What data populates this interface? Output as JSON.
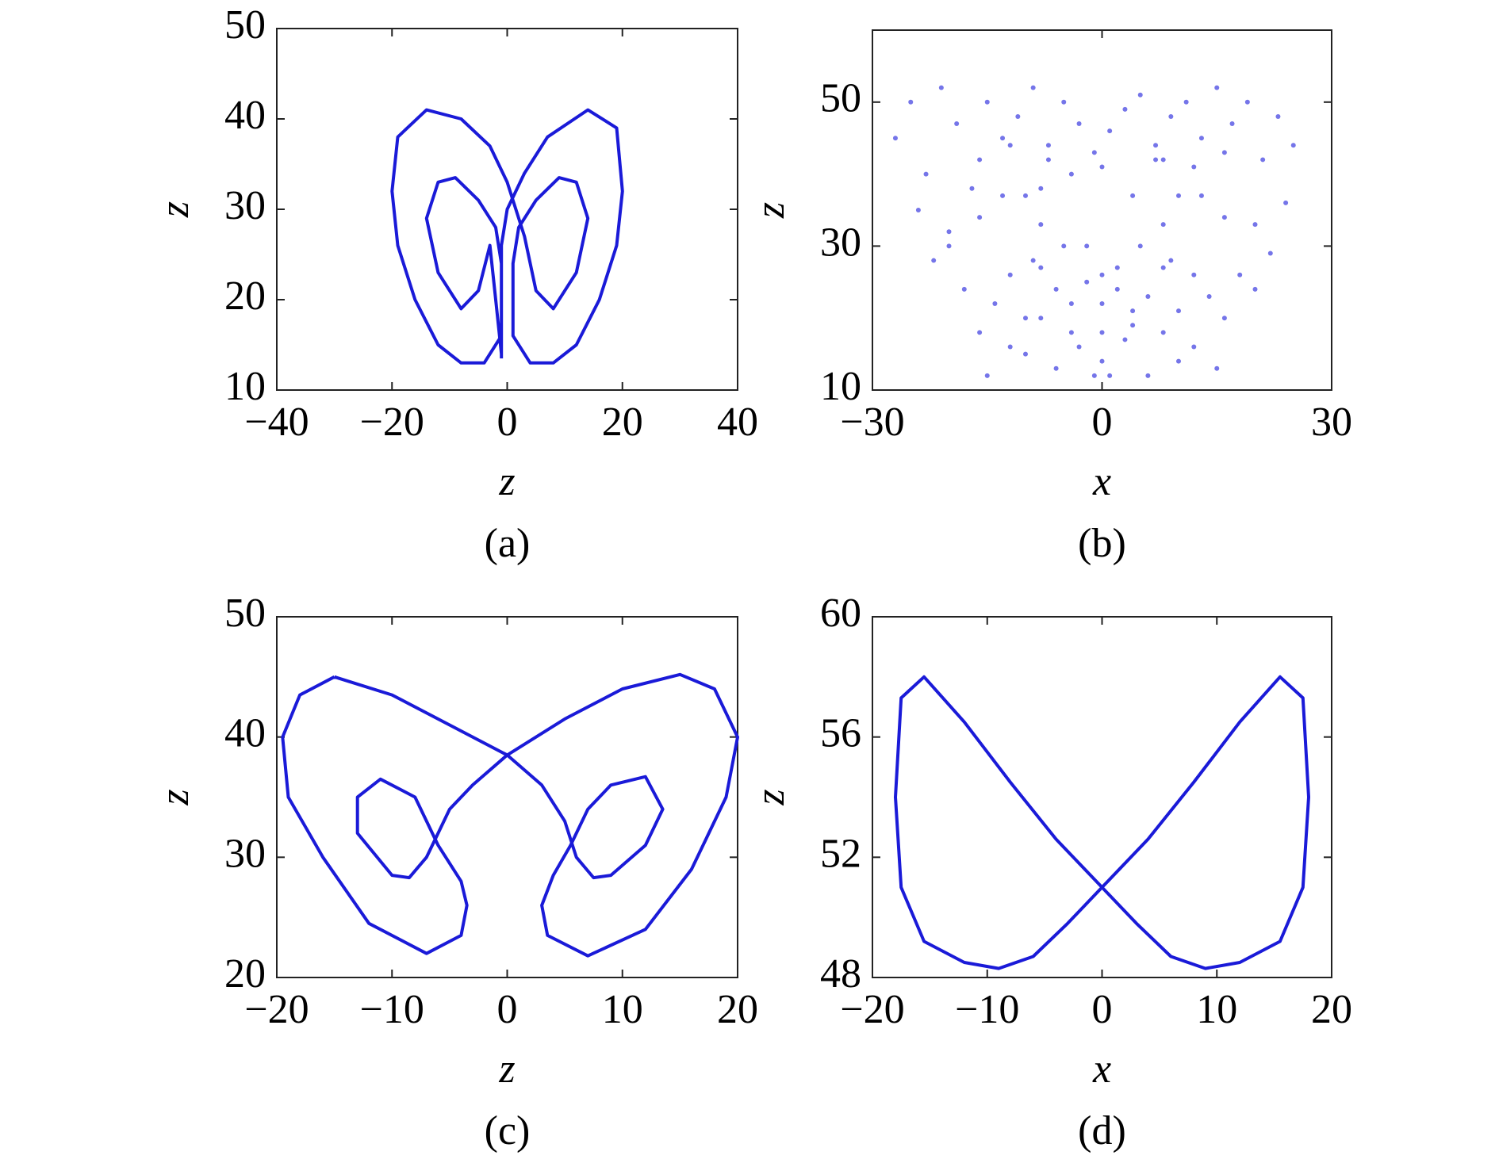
{
  "chart_data": [
    {
      "type": "line",
      "caption": "(a)",
      "xlabel": "z",
      "ylabel": "z",
      "color": "#1a1ad8",
      "xlim": [
        -40,
        40
      ],
      "ylim": [
        10,
        50
      ],
      "xticks": [
        {
          "value": -40,
          "label": "−40"
        },
        {
          "value": -20,
          "label": "−20"
        },
        0,
        20,
        40
      ],
      "yticks": [
        10,
        20,
        30,
        40,
        50
      ],
      "x": [
        -1,
        -1,
        -1,
        0,
        3,
        7,
        14,
        19,
        20,
        19,
        16,
        12,
        8,
        4,
        1,
        1,
        2,
        5,
        9,
        12,
        14,
        12,
        8,
        5,
        3,
        0,
        -3,
        -8,
        -14,
        -19,
        -20,
        -19,
        -16,
        -12,
        -8,
        -4,
        -1,
        -1,
        -2,
        -5,
        -9,
        -12,
        -14,
        -12,
        -8,
        -5,
        -3,
        -2,
        -1
      ],
      "values": [
        13.5,
        20,
        26,
        30,
        34,
        38,
        41,
        39,
        32,
        26,
        20,
        15,
        13,
        13,
        16,
        24,
        28,
        31,
        33.5,
        33,
        29,
        23,
        19,
        21,
        27,
        33,
        37,
        40,
        41,
        38,
        32,
        26,
        20,
        15,
        13,
        13,
        16,
        24,
        28,
        31,
        33.5,
        33,
        29,
        23,
        19,
        21,
        26,
        20,
        14
      ]
    },
    {
      "type": "scatter",
      "caption": "(b)",
      "xlabel": "x",
      "ylabel": "z",
      "color": "#3a3ae0",
      "xlim": [
        -30,
        30
      ],
      "ylim": [
        10,
        60
      ],
      "xticks": [
        {
          "value": -30,
          "label": "−30"
        },
        0,
        30
      ],
      "yticks": [
        10,
        30,
        50
      ],
      "x": [
        -27,
        -25,
        -23,
        -21,
        -19,
        -17,
        -15,
        -13,
        -11,
        -9,
        -7,
        -5,
        -3,
        -1,
        1,
        3,
        5,
        7,
        9,
        11,
        13,
        15,
        17,
        19,
        21,
        23,
        25,
        -24,
        -20,
        -16,
        -12,
        -8,
        -4,
        0,
        4,
        8,
        12,
        16,
        20,
        24,
        -22,
        -18,
        -14,
        -10,
        -6,
        -2,
        2,
        6,
        10,
        14,
        18,
        22,
        -20,
        -16,
        -12,
        -8,
        -4,
        0,
        4,
        8,
        12,
        16,
        20,
        -15,
        -10,
        -6,
        -3,
        0,
        3,
        6,
        10,
        15,
        -8,
        -4,
        -2,
        0,
        2,
        4,
        8,
        -1,
        1,
        0,
        -16,
        -13,
        -10,
        -8,
        -9,
        -12,
        16,
        13,
        10,
        8,
        9,
        12,
        -7,
        7,
        -5,
        5
      ],
      "values": [
        45,
        50,
        40,
        52,
        47,
        38,
        50,
        45,
        48,
        52,
        44,
        50,
        47,
        43,
        46,
        49,
        51,
        44,
        48,
        50,
        45,
        52,
        47,
        50,
        42,
        48,
        44,
        35,
        30,
        42,
        44,
        38,
        40,
        41,
        37,
        42,
        41,
        43,
        33,
        36,
        28,
        24,
        22,
        20,
        24,
        30,
        27,
        23,
        21,
        23,
        26,
        29,
        32,
        18,
        16,
        20,
        18,
        22,
        19,
        18,
        16,
        20,
        24,
        12,
        15,
        13,
        16,
        14,
        17,
        12,
        14,
        13,
        27,
        22,
        25,
        18,
        24,
        21,
        27,
        12,
        12,
        26,
        34,
        37,
        37,
        33,
        28,
        26,
        34,
        37,
        37,
        33,
        28,
        26,
        42,
        42,
        30,
        30
      ]
    },
    {
      "type": "line",
      "caption": "(c)",
      "xlabel": "z",
      "ylabel": "z",
      "color": "#1a1ad8",
      "xlim": [
        -20,
        20
      ],
      "ylim": [
        20,
        50
      ],
      "xticks": [
        {
          "value": -20,
          "label": "−20"
        },
        {
          "value": -10,
          "label": "−10"
        },
        0,
        10,
        20
      ],
      "yticks": [
        20,
        30,
        40,
        50
      ],
      "x": [
        -15,
        -10,
        -5,
        0,
        3,
        5,
        6,
        7.5,
        9,
        12,
        13.5,
        12,
        9,
        7,
        5.5,
        4,
        3,
        3.5,
        7,
        12,
        16,
        19,
        20,
        18,
        15,
        10,
        5,
        0,
        -3,
        -5,
        -6,
        -7,
        -8.5,
        -10,
        -13,
        -13,
        -11,
        -8,
        -6,
        -4,
        -3.5,
        -4,
        -7,
        -12,
        -16,
        -19,
        -19.5,
        -18,
        -15
      ],
      "values": [
        45,
        43.5,
        41,
        38.5,
        36,
        33,
        30,
        28.3,
        28.5,
        31,
        34,
        36.7,
        36,
        34,
        31,
        28.5,
        26,
        23.5,
        21.8,
        24,
        29,
        35,
        40,
        44,
        45.2,
        44,
        41.5,
        38.5,
        36,
        34,
        32,
        30,
        28.3,
        28.5,
        32,
        35,
        36.5,
        35,
        31,
        28,
        26,
        23.5,
        22,
        24.5,
        30,
        35,
        40,
        43.5,
        45
      ]
    },
    {
      "type": "line",
      "caption": "(d)",
      "xlabel": "x",
      "ylabel": "z",
      "color": "#1a1ad8",
      "xlim": [
        -20,
        20
      ],
      "ylim": [
        48,
        60
      ],
      "xticks": [
        {
          "value": -20,
          "label": "−20"
        },
        {
          "value": -10,
          "label": "−10"
        },
        0,
        10,
        20
      ],
      "yticks": [
        48,
        52,
        56,
        60
      ],
      "x": [
        0,
        4,
        8,
        12,
        15.5,
        17.5,
        18,
        17.5,
        15.5,
        12,
        9,
        6,
        3,
        0,
        -4,
        -8,
        -12,
        -15.5,
        -17.5,
        -18,
        -17.5,
        -15.5,
        -12,
        -9,
        -6,
        -3,
        0
      ],
      "values": [
        51,
        52.6,
        54.5,
        56.5,
        58,
        57.3,
        54,
        51,
        49.2,
        48.5,
        48.3,
        48.7,
        49.8,
        51,
        52.6,
        54.5,
        56.5,
        58,
        57.3,
        54,
        51,
        49.2,
        48.5,
        48.3,
        48.7,
        49.8,
        51
      ]
    }
  ]
}
